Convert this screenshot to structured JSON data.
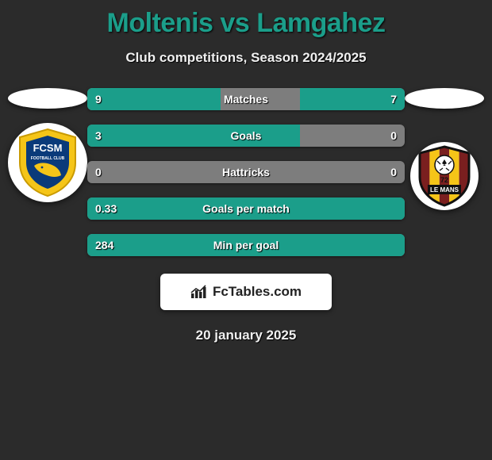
{
  "title": {
    "team1": "Moltenis",
    "vs": "vs",
    "team2": "Lamgahez"
  },
  "subtitle": "Club competitions, Season 2024/2025",
  "colors": {
    "accent": "#1b9e8a",
    "bar_bg": "#7d7d7d",
    "page_bg": "#2b2b2b",
    "text": "#f0f0f0"
  },
  "bars": [
    {
      "label": "Matches",
      "left_val": "9",
      "right_val": "7",
      "left_pct": 42,
      "right_pct": 33
    },
    {
      "label": "Goals",
      "left_val": "3",
      "right_val": "0",
      "left_pct": 67,
      "right_pct": 0
    },
    {
      "label": "Hattricks",
      "left_val": "0",
      "right_val": "0",
      "left_pct": 0,
      "right_pct": 0
    },
    {
      "label": "Goals per match",
      "left_val": "0.33",
      "right_val": "",
      "left_pct": 100,
      "right_pct": 0
    },
    {
      "label": "Min per goal",
      "left_val": "284",
      "right_val": "",
      "left_pct": 100,
      "right_pct": 0
    }
  ],
  "footer_brand": "FcTables.com",
  "date": "20 january 2025",
  "team1_logo": {
    "shield_fill": "#f5c518",
    "inner_fill": "#0a3a7a",
    "text": "FCSM",
    "text2": "FOOTBALL CLUB"
  },
  "team2_logo": {
    "stripes": [
      "#7a1f1f",
      "#f5c518",
      "#7a1f1f",
      "#f5c518",
      "#7a1f1f"
    ],
    "border": "#111",
    "text": "LE MANS"
  }
}
